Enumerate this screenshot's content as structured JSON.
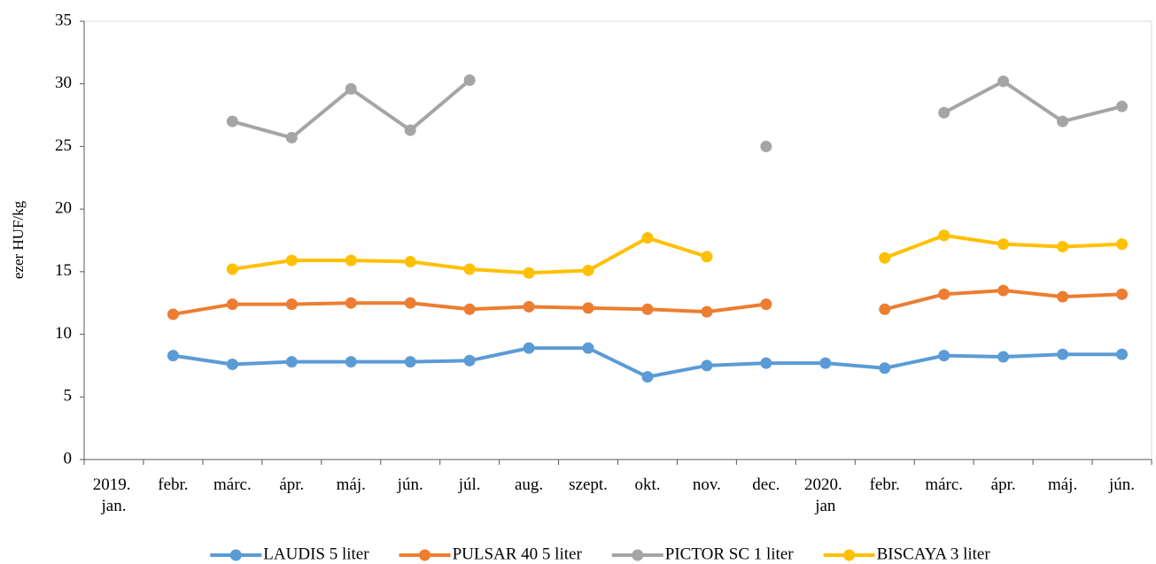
{
  "chart_data": {
    "type": "line",
    "y_label": "ezer HUF/kg",
    "categories": [
      "2019. jan.",
      "febr.",
      "márc.",
      "ápr.",
      "máj.",
      "jún.",
      "júl.",
      "aug.",
      "szept.",
      "okt.",
      "nov.",
      "dec.",
      "2020. jan",
      "febr.",
      "márc.",
      "ápr.",
      "máj.",
      "jún."
    ],
    "series": [
      {
        "name": "LAUDIS 5 liter",
        "color": "#5b9bd5",
        "values": [
          null,
          8.3,
          7.6,
          7.8,
          7.8,
          7.8,
          7.9,
          8.9,
          8.9,
          6.6,
          7.5,
          7.7,
          7.7,
          7.3,
          8.3,
          8.2,
          8.4,
          8.4
        ]
      },
      {
        "name": "PULSAR 40 5 liter",
        "color": "#ed7d31",
        "values": [
          null,
          11.6,
          12.4,
          12.4,
          12.5,
          12.5,
          12.0,
          12.2,
          12.1,
          12.0,
          11.8,
          12.4,
          null,
          12.0,
          13.2,
          13.5,
          13.0,
          13.2
        ]
      },
      {
        "name": "PICTOR SC 1 liter",
        "color": "#a5a5a5",
        "values": [
          null,
          null,
          27.0,
          25.7,
          29.6,
          26.3,
          30.3,
          null,
          null,
          null,
          null,
          25.0,
          null,
          null,
          27.7,
          30.2,
          27.0,
          28.2
        ]
      },
      {
        "name": "BISCAYA 3 liter",
        "color": "#ffc000",
        "values": [
          null,
          null,
          15.2,
          15.9,
          15.9,
          15.8,
          15.2,
          14.9,
          15.1,
          17.7,
          16.2,
          null,
          null,
          16.1,
          17.9,
          17.2,
          17.0,
          17.2
        ]
      }
    ],
    "ylim": [
      0,
      35
    ],
    "yticks": [
      0,
      5,
      10,
      15,
      20,
      25,
      30,
      35
    ],
    "grid": false,
    "legend": "bottom"
  }
}
